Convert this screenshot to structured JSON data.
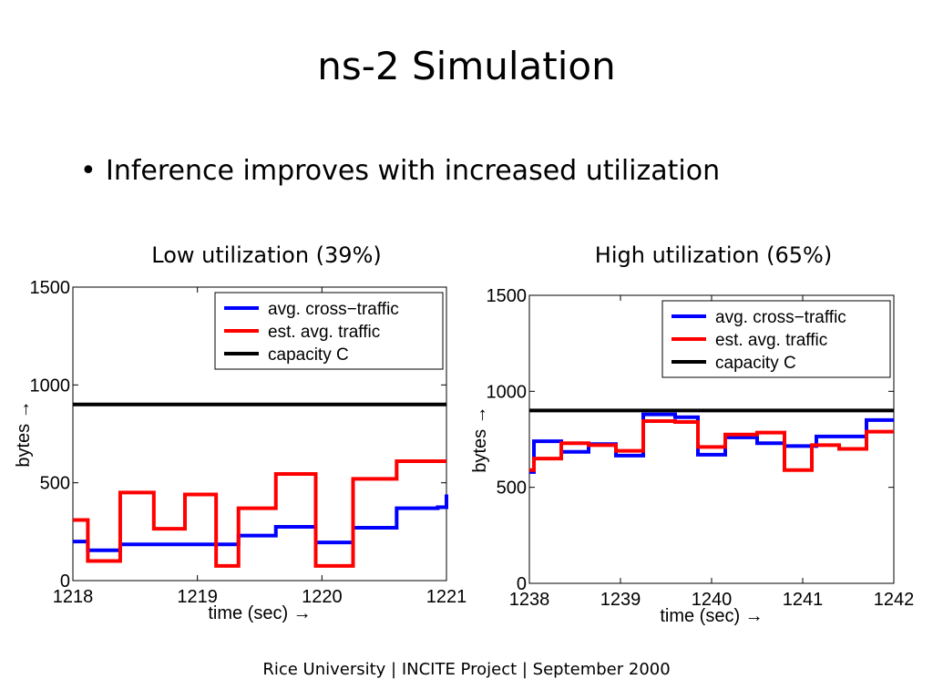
{
  "slide": {
    "title": "ns-2 Simulation",
    "bullet": "Inference improves with increased utilization",
    "footer": "Rice University | INCITE Project | September 2000"
  },
  "colors": {
    "cross": "#0000ff",
    "est": "#ff0000",
    "capacity": "#000000"
  },
  "chart_data": [
    {
      "type": "line",
      "title": "Low utilization (39%)",
      "xlabel": "time (sec) →",
      "ylabel": "bytes →",
      "xlim": [
        1218,
        1221
      ],
      "ylim": [
        0,
        1500
      ],
      "xticks": [
        1218,
        1219,
        1220,
        1221
      ],
      "yticks": [
        0,
        500,
        1000,
        1500
      ],
      "legend_position": "top-right",
      "step": true,
      "series": [
        {
          "name": "avg. cross−traffic",
          "color": "#0000ff",
          "x": [
            1218,
            1218.12,
            1218.38,
            1218.9,
            1219.33,
            1219.63,
            1219.95,
            1220.25,
            1220.6,
            1220.93,
            1221
          ],
          "y": [
            200,
            155,
            185,
            185,
            230,
            275,
            195,
            270,
            370,
            375,
            440
          ]
        },
        {
          "name": "est. avg. traffic",
          "color": "#ff0000",
          "x": [
            1218,
            1218.12,
            1218.38,
            1218.65,
            1218.9,
            1219.15,
            1219.33,
            1219.63,
            1219.95,
            1220.25,
            1220.6,
            1220.93,
            1221
          ],
          "y": [
            310,
            100,
            450,
            265,
            440,
            75,
            370,
            545,
            75,
            520,
            610,
            610,
            610
          ]
        },
        {
          "name": "capacity C",
          "color": "#000000",
          "x": [
            1218,
            1221
          ],
          "y": [
            900,
            900
          ]
        }
      ]
    },
    {
      "type": "line",
      "title": "High utilization (65%)",
      "xlabel": "time (sec) →",
      "ylabel": "bytes →",
      "xlim": [
        1238,
        1242
      ],
      "ylim": [
        0,
        1500
      ],
      "xticks": [
        1238,
        1239,
        1240,
        1241,
        1242
      ],
      "yticks": [
        0,
        500,
        1000,
        1500
      ],
      "legend_position": "top-right",
      "step": true,
      "series": [
        {
          "name": "avg. cross−traffic",
          "color": "#0000ff",
          "x": [
            1238,
            1238.05,
            1238.35,
            1238.65,
            1238.95,
            1239.25,
            1239.6,
            1239.85,
            1240.15,
            1240.5,
            1240.8,
            1241.15,
            1241.7,
            1242
          ],
          "y": [
            580,
            740,
            685,
            725,
            665,
            880,
            865,
            670,
            760,
            730,
            715,
            765,
            850,
            850
          ]
        },
        {
          "name": "est. avg. traffic",
          "color": "#ff0000",
          "x": [
            1238,
            1238.05,
            1238.35,
            1238.65,
            1238.95,
            1239.25,
            1239.6,
            1239.85,
            1240.15,
            1240.5,
            1240.8,
            1241.1,
            1241.4,
            1241.7,
            1242
          ],
          "y": [
            590,
            650,
            730,
            720,
            690,
            845,
            840,
            710,
            775,
            785,
            590,
            720,
            700,
            790,
            790
          ]
        },
        {
          "name": "capacity C",
          "color": "#000000",
          "x": [
            1238,
            1242
          ],
          "y": [
            900,
            900
          ]
        }
      ]
    }
  ]
}
